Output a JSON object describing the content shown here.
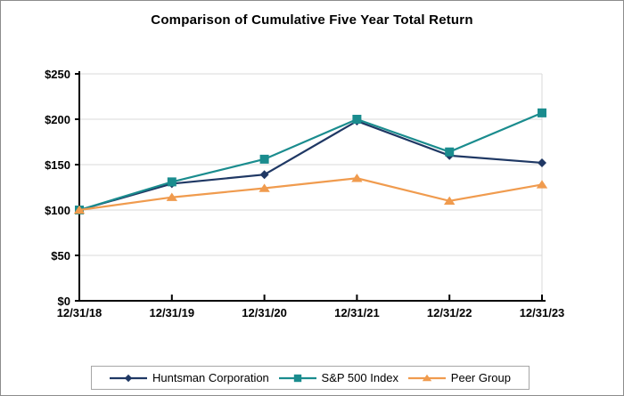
{
  "chart_data": {
    "type": "line",
    "title": "Comparison of Cumulative Five Year Total Return",
    "categories": [
      "12/31/18",
      "12/31/19",
      "12/31/20",
      "12/31/21",
      "12/31/22",
      "12/31/23"
    ],
    "series": [
      {
        "name": "Huntsman Corporation",
        "marker": "diamond",
        "color": "#1F3864",
        "values": [
          100,
          129,
          139,
          198,
          160,
          152
        ]
      },
      {
        "name": "S&P 500 Index",
        "marker": "square",
        "color": "#1A8C8E",
        "values": [
          100,
          131,
          156,
          200,
          164,
          207
        ]
      },
      {
        "name": "Peer Group",
        "marker": "triangle",
        "color": "#F09B4E",
        "values": [
          100,
          114,
          124,
          135,
          110,
          128
        ]
      }
    ],
    "ylim": [
      0,
      250
    ],
    "ytick_step": 50,
    "ytick_labels": [
      "$0",
      "$50",
      "$100",
      "$150",
      "$200",
      "$250"
    ],
    "xlabel": "",
    "ylabel": "",
    "grid": "horizontal",
    "gridline_color": "#D9D9D9",
    "axis_color": "#000000",
    "legend_position": "bottom",
    "legend_border_color": "#A6A6A6"
  }
}
